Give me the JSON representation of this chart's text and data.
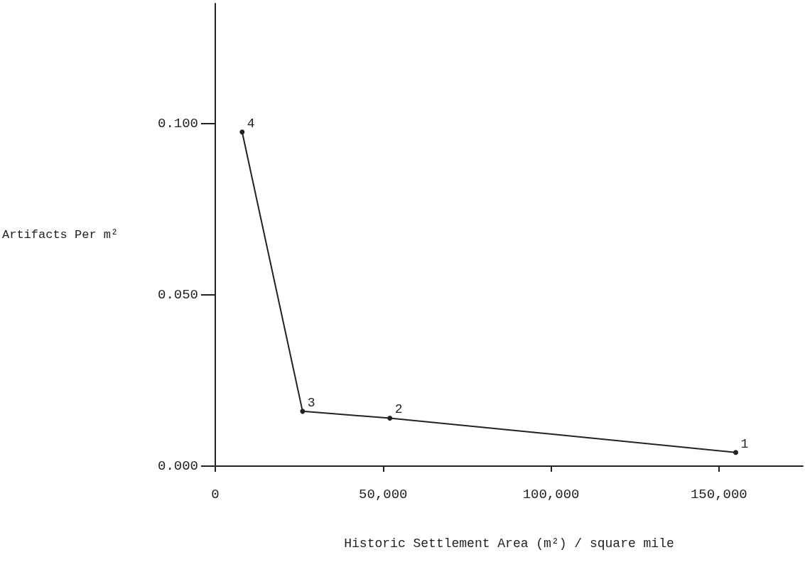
{
  "chart_data": {
    "type": "line",
    "xlabel": "Historic Settlement Area (m²) / square mile",
    "ylabel": "Artifacts Per m²",
    "x": [
      8000,
      26000,
      52000,
      155000
    ],
    "series": [
      {
        "color": "#222222",
        "values": [
          0.0975,
          0.016,
          0.014,
          0.004
        ]
      }
    ],
    "annotations": [
      {
        "text": "4",
        "x": 8000,
        "y": 0.0975
      },
      {
        "text": "3",
        "x": 26000,
        "y": 0.016
      },
      {
        "text": "2",
        "x": 52000,
        "y": 0.014
      },
      {
        "text": "1",
        "x": 155000,
        "y": 0.004
      }
    ],
    "xlim": [
      0,
      175000
    ],
    "xticks": [
      {
        "value": 0,
        "label": "0"
      },
      {
        "value": 50000,
        "label": "50,000"
      },
      {
        "value": 100000,
        "label": "100,000"
      },
      {
        "value": 150000,
        "label": "150,000"
      }
    ],
    "ylim": [
      0,
      0.135
    ],
    "yticks": [
      {
        "value": 0,
        "label": "0.000"
      },
      {
        "value": 0.05,
        "label": "0.050"
      },
      {
        "value": 0.1,
        "label": "0.100"
      }
    ],
    "grid": false,
    "marker": "circle",
    "line_style": "solid"
  }
}
